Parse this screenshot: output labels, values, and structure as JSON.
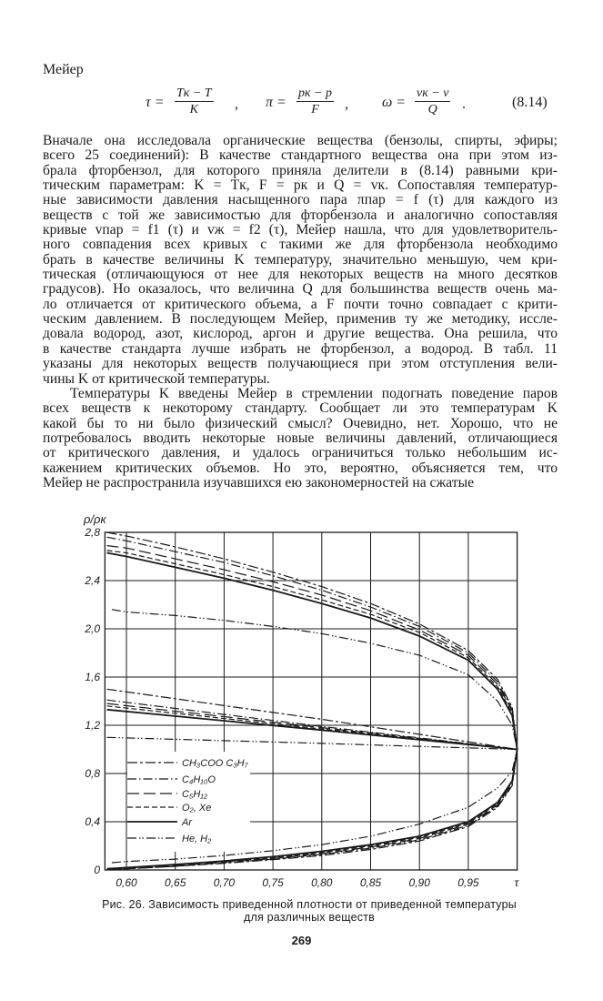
{
  "header": {
    "author": "Мейер"
  },
  "formula": {
    "tau": {
      "lhs": "τ =",
      "num": "Tк − T",
      "den": "K"
    },
    "pi": {
      "lhs": "π =",
      "num": "pк − p",
      "den": "F"
    },
    "omega": {
      "lhs": "ω =",
      "num": "vк − v",
      "den": "Q"
    },
    "sep1": ",",
    "sep2": ",",
    "sep3": ".",
    "number": "(8.14)"
  },
  "paragraphs": [
    {
      "lines": [
        "Вначале она исследовала органические вещества (бензолы, спирты, эфиры;",
        "всего 25 соединений): В качестве стандартного вещества она при этом из-",
        "брала фторбензол, для которого приняла делители в (8.14) равными кри-",
        "тическим параметрам: K = Tк, F = pк и Q = vк. Сопоставляя температур-",
        "ные зависимости давления насыщенного пара πпар = f (τ) для каждого из",
        "веществ с той же зависимостью для фторбензола и аналогично сопоставляя",
        "кривые vпар = f1 (τ) и vж = f2 (τ), Мейер нашла, что для удовлетворитель-",
        "ного совпадения всех кривых с такими же для фторбензола необходимо",
        "брать в качестве величины K температуру, значительно меньшую, чем кри-",
        "тическая (отличающуюся от нее для некоторых веществ на много десятков",
        "градусов). Но оказалось, что величина Q для большинства веществ очень ма-",
        "ло отличается от критического объема, а F почти точно совпадает с крити-",
        "ческим давлением. В последующем Мейер, применив ту же методику, иссле-",
        "довала водород, азот, кислород, аргон и другие вещества. Она решила, что",
        "в качестве стандарта лучше избрать не фторбензол, а водород. В табл. 11",
        "указаны для некоторых веществ получающиеся при этом отступления вели-",
        "чины K от критической температуры."
      ]
    },
    {
      "lines": [
        "Температуры K введены Мейер в стремлении подогнать поведение паров",
        "всех веществ к некоторому стандарту. Сообщает ли это температурам K",
        "какой бы то ни было физический смысл? Очевидно, нет. Хорошо, что не",
        "потребовалось вводить некоторые новые величины давлений, отличающиеся",
        "от критического давления, и удалось ограничиться только небольшим ис-",
        "кажением критических объемов. Но это, вероятно, объясняется тем, что",
        "Мейер не распространила изучавшихся ею закономерностей на сжатые"
      ]
    }
  ],
  "chart_data": {
    "type": "line",
    "ylabel": "ρ/ρк",
    "xlabel": "τ",
    "xlim": [
      0.578,
      1.0
    ],
    "ylim": [
      0,
      2.8
    ],
    "xticks": [
      "0,60",
      "0,65",
      "0,70",
      "0,75",
      "0,80",
      "0,85",
      "0,90",
      "0,95"
    ],
    "xtick_values": [
      0.6,
      0.65,
      0.7,
      0.75,
      0.8,
      0.85,
      0.9,
      0.95
    ],
    "yticks": [
      "0",
      "0,4",
      "0,8",
      "1,2",
      "1,6",
      "2,0",
      "2,4",
      "2,8"
    ],
    "ytick_values": [
      0,
      0.4,
      0.8,
      1.2,
      1.6,
      2.0,
      2.4,
      2.8
    ],
    "grid": true,
    "legend_placement": "lower-left",
    "x": [
      0.58,
      0.6,
      0.65,
      0.7,
      0.75,
      0.8,
      0.85,
      0.9,
      0.95,
      0.98,
      0.995,
      1.0
    ],
    "diameter_x": [
      0.58,
      0.8,
      1.0
    ],
    "series": [
      {
        "name": "CH3COO C3H7",
        "style": "dash-dot",
        "liquid": [
          2.8,
          2.77,
          2.68,
          2.58,
          2.47,
          2.35,
          2.21,
          2.04,
          1.82,
          1.58,
          1.35,
          1.0
        ],
        "vapor": [
          0.005,
          0.01,
          0.03,
          0.055,
          0.085,
          0.12,
          0.17,
          0.24,
          0.36,
          0.52,
          0.7,
          1.0
        ],
        "diameter": [
          1.5,
          1.25,
          1.0
        ]
      },
      {
        "name": "C4H10O",
        "style": "dash-dot-fine",
        "liquid": [
          2.76,
          2.73,
          2.64,
          2.55,
          2.44,
          2.32,
          2.18,
          2.02,
          1.8,
          1.56,
          1.33,
          1.0
        ],
        "vapor": [
          0.005,
          0.01,
          0.03,
          0.06,
          0.09,
          0.13,
          0.18,
          0.25,
          0.37,
          0.53,
          0.71,
          1.0
        ],
        "diameter": [
          1.41,
          1.19,
          1.0
        ]
      },
      {
        "name": "C5H12",
        "style": "long-dash",
        "liquid": [
          2.69,
          2.67,
          2.58,
          2.49,
          2.39,
          2.28,
          2.15,
          1.99,
          1.78,
          1.54,
          1.32,
          1.0
        ],
        "vapor": [
          0.005,
          0.012,
          0.035,
          0.065,
          0.095,
          0.135,
          0.19,
          0.26,
          0.38,
          0.54,
          0.72,
          1.0
        ],
        "diameter": [
          1.38,
          1.18,
          1.0
        ]
      },
      {
        "name": "O2, Xe",
        "style": "short-dash",
        "liquid": [
          2.65,
          2.63,
          2.54,
          2.45,
          2.35,
          2.24,
          2.12,
          1.97,
          1.76,
          1.52,
          1.3,
          1.0
        ],
        "vapor": [
          0.008,
          0.015,
          0.04,
          0.07,
          0.1,
          0.145,
          0.2,
          0.27,
          0.39,
          0.55,
          0.73,
          1.0
        ],
        "diameter": [
          1.36,
          1.17,
          1.0
        ]
      },
      {
        "name": "Ar",
        "style": "solid",
        "liquid": [
          2.63,
          2.6,
          2.51,
          2.42,
          2.32,
          2.21,
          2.09,
          1.94,
          1.74,
          1.5,
          1.28,
          1.0
        ],
        "vapor": [
          0.01,
          0.02,
          0.045,
          0.075,
          0.11,
          0.155,
          0.21,
          0.28,
          0.4,
          0.56,
          0.74,
          1.0
        ],
        "diameter": [
          1.33,
          1.16,
          1.0
        ]
      },
      {
        "name": "He, H2",
        "style": "dash-dot-dot",
        "liquid": [
          2.16,
          2.14,
          2.11,
          2.07,
          2.02,
          1.96,
          1.88,
          1.78,
          1.62,
          1.4,
          1.2,
          1.0
        ],
        "vapor": [
          0.06,
          0.07,
          0.09,
          0.12,
          0.16,
          0.21,
          0.28,
          0.38,
          0.52,
          0.68,
          0.82,
          1.0
        ],
        "diameter": [
          1.1,
          1.05,
          1.0
        ]
      }
    ],
    "legend_labels": [
      "CH₃COO C₃H₇",
      "C₄H₁₀O",
      "C₅H₁₂",
      "O₂, Xe",
      "Ar",
      "He, H₂"
    ],
    "colors": {
      "ink": "#1a1a1a",
      "paper": "#ffffff"
    }
  },
  "caption": {
    "line1": "Рис. 26. Зависимость приведенной плотности от приведенной температуры",
    "line2": "для различных веществ"
  },
  "page_number": "269"
}
